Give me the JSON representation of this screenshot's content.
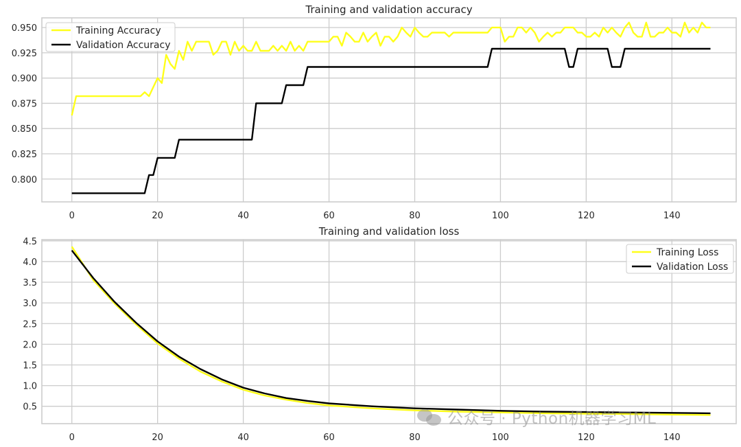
{
  "watermark": {
    "text": "公众号 · Python机器学习ML",
    "icon": "wechat-icon"
  },
  "colors": {
    "train": "#ffff1a",
    "val": "#000000",
    "grid": "#cccccc",
    "frame": "#cccccc"
  },
  "chart_data": [
    {
      "type": "line",
      "title": "Training and validation accuracy",
      "xlabel": "",
      "ylabel": "",
      "xlim": [
        -7,
        155
      ],
      "ylim": [
        0.7774,
        0.9596
      ],
      "xticks": [
        0,
        20,
        40,
        60,
        80,
        100,
        120,
        140
      ],
      "yticks": [
        0.8,
        0.825,
        0.85,
        0.875,
        0.9,
        0.925,
        0.95
      ],
      "ytick_labels": [
        "0.800",
        "0.825",
        "0.850",
        "0.875",
        "0.900",
        "0.925",
        "0.950"
      ],
      "grid": true,
      "legend": "upper-left",
      "series": [
        {
          "name": "Training Accuracy",
          "color": "#ffff1a",
          "x": [
            0,
            1,
            2,
            3,
            4,
            5,
            6,
            7,
            8,
            9,
            10,
            11,
            12,
            13,
            14,
            15,
            16,
            17,
            18,
            19,
            20,
            21,
            22,
            23,
            24,
            25,
            26,
            27,
            28,
            29,
            30,
            31,
            32,
            33,
            34,
            35,
            36,
            37,
            38,
            39,
            40,
            41,
            42,
            43,
            44,
            45,
            46,
            47,
            48,
            49,
            50,
            51,
            52,
            53,
            54,
            55,
            56,
            57,
            58,
            59,
            60,
            61,
            62,
            63,
            64,
            65,
            66,
            67,
            68,
            69,
            70,
            71,
            72,
            73,
            74,
            75,
            76,
            77,
            78,
            79,
            80,
            81,
            82,
            83,
            84,
            85,
            86,
            87,
            88,
            89,
            90,
            91,
            92,
            93,
            94,
            95,
            96,
            97,
            98,
            99,
            100,
            101,
            102,
            103,
            104,
            105,
            106,
            107,
            108,
            109,
            110,
            111,
            112,
            113,
            114,
            115,
            116,
            117,
            118,
            119,
            120,
            121,
            122,
            123,
            124,
            125,
            126,
            127,
            128,
            129,
            130,
            131,
            132,
            133,
            134,
            135,
            136,
            137,
            138,
            139,
            140,
            141,
            142,
            143,
            144,
            145,
            146,
            147,
            148,
            149
          ],
          "y": [
            0.863,
            0.882,
            0.882,
            0.882,
            0.882,
            0.882,
            0.882,
            0.882,
            0.882,
            0.882,
            0.882,
            0.882,
            0.882,
            0.882,
            0.882,
            0.882,
            0.882,
            0.886,
            0.882,
            0.891,
            0.9,
            0.895,
            0.923,
            0.914,
            0.909,
            0.927,
            0.918,
            0.936,
            0.927,
            0.936,
            0.936,
            0.936,
            0.936,
            0.923,
            0.927,
            0.936,
            0.936,
            0.923,
            0.936,
            0.927,
            0.932,
            0.927,
            0.927,
            0.936,
            0.927,
            0.927,
            0.927,
            0.932,
            0.927,
            0.932,
            0.927,
            0.936,
            0.927,
            0.932,
            0.927,
            0.936,
            0.936,
            0.936,
            0.936,
            0.936,
            0.936,
            0.941,
            0.941,
            0.932,
            0.945,
            0.941,
            0.936,
            0.936,
            0.945,
            0.936,
            0.941,
            0.945,
            0.932,
            0.941,
            0.941,
            0.936,
            0.941,
            0.95,
            0.945,
            0.941,
            0.95,
            0.945,
            0.941,
            0.941,
            0.945,
            0.945,
            0.945,
            0.945,
            0.941,
            0.945,
            0.945,
            0.945,
            0.945,
            0.945,
            0.945,
            0.945,
            0.945,
            0.945,
            0.95,
            0.95,
            0.95,
            0.936,
            0.941,
            0.941,
            0.95,
            0.95,
            0.945,
            0.95,
            0.945,
            0.936,
            0.941,
            0.945,
            0.941,
            0.945,
            0.945,
            0.95,
            0.95,
            0.95,
            0.945,
            0.945,
            0.941,
            0.941,
            0.945,
            0.941,
            0.95,
            0.945,
            0.95,
            0.945,
            0.941,
            0.95,
            0.955,
            0.945,
            0.941,
            0.941,
            0.955,
            0.941,
            0.941,
            0.945,
            0.945,
            0.95,
            0.945,
            0.945,
            0.941,
            0.955,
            0.945,
            0.95,
            0.945,
            0.955,
            0.95,
            0.95
          ]
        },
        {
          "name": "Validation Accuracy",
          "color": "#000000",
          "x": [
            0,
            1,
            2,
            3,
            4,
            5,
            6,
            7,
            8,
            9,
            10,
            11,
            12,
            13,
            14,
            15,
            16,
            17,
            18,
            19,
            20,
            21,
            22,
            23,
            24,
            25,
            26,
            27,
            28,
            29,
            30,
            31,
            32,
            33,
            34,
            35,
            36,
            37,
            38,
            39,
            40,
            41,
            42,
            43,
            44,
            45,
            46,
            47,
            48,
            49,
            50,
            51,
            52,
            53,
            54,
            55,
            56,
            57,
            58,
            59,
            60,
            61,
            62,
            63,
            64,
            65,
            66,
            67,
            68,
            69,
            70,
            71,
            72,
            73,
            74,
            75,
            76,
            77,
            78,
            79,
            80,
            81,
            82,
            83,
            84,
            85,
            86,
            87,
            88,
            89,
            90,
            91,
            92,
            93,
            94,
            95,
            96,
            97,
            98,
            99,
            100,
            101,
            102,
            103,
            104,
            105,
            106,
            107,
            108,
            109,
            110,
            111,
            112,
            113,
            114,
            115,
            116,
            117,
            118,
            119,
            120,
            121,
            122,
            123,
            124,
            125,
            126,
            127,
            128,
            129,
            130,
            131,
            132,
            133,
            134,
            135,
            136,
            137,
            138,
            139,
            140,
            141,
            142,
            143,
            144,
            145,
            146,
            147,
            148,
            149
          ],
          "y": [
            0.786,
            0.786,
            0.786,
            0.786,
            0.786,
            0.786,
            0.786,
            0.786,
            0.786,
            0.786,
            0.786,
            0.786,
            0.786,
            0.786,
            0.786,
            0.786,
            0.786,
            0.786,
            0.804,
            0.804,
            0.821,
            0.821,
            0.821,
            0.821,
            0.821,
            0.839,
            0.839,
            0.839,
            0.839,
            0.839,
            0.839,
            0.839,
            0.839,
            0.839,
            0.839,
            0.839,
            0.839,
            0.839,
            0.839,
            0.839,
            0.839,
            0.839,
            0.839,
            0.875,
            0.875,
            0.875,
            0.875,
            0.875,
            0.875,
            0.875,
            0.893,
            0.893,
            0.893,
            0.893,
            0.893,
            0.911,
            0.911,
            0.911,
            0.911,
            0.911,
            0.911,
            0.911,
            0.911,
            0.911,
            0.911,
            0.911,
            0.911,
            0.911,
            0.911,
            0.911,
            0.911,
            0.911,
            0.911,
            0.911,
            0.911,
            0.911,
            0.911,
            0.911,
            0.911,
            0.911,
            0.911,
            0.911,
            0.911,
            0.911,
            0.911,
            0.911,
            0.911,
            0.911,
            0.911,
            0.911,
            0.911,
            0.911,
            0.911,
            0.911,
            0.911,
            0.911,
            0.911,
            0.911,
            0.929,
            0.929,
            0.929,
            0.929,
            0.929,
            0.929,
            0.929,
            0.929,
            0.929,
            0.929,
            0.929,
            0.929,
            0.929,
            0.929,
            0.929,
            0.929,
            0.929,
            0.929,
            0.911,
            0.911,
            0.929,
            0.929,
            0.929,
            0.929,
            0.929,
            0.929,
            0.929,
            0.929,
            0.911,
            0.911,
            0.911,
            0.929,
            0.929,
            0.929,
            0.929,
            0.929,
            0.929,
            0.929,
            0.929,
            0.929,
            0.929,
            0.929,
            0.929,
            0.929,
            0.929,
            0.929,
            0.929,
            0.929,
            0.929,
            0.929,
            0.929,
            0.929
          ]
        }
      ]
    },
    {
      "type": "line",
      "title": "Training and validation loss",
      "xlabel": "",
      "ylabel": "",
      "xlim": [
        -7,
        155
      ],
      "ylim": [
        0.08,
        4.53
      ],
      "xticks": [
        0,
        20,
        40,
        60,
        80,
        100,
        120,
        140
      ],
      "yticks": [
        0.5,
        1.0,
        1.5,
        2.0,
        2.5,
        3.0,
        3.5,
        4.0,
        4.5
      ],
      "ytick_labels": [
        "0.5",
        "1.0",
        "1.5",
        "2.0",
        "2.5",
        "3.0",
        "3.5",
        "4.0",
        "4.5"
      ],
      "grid": true,
      "legend": "upper-right",
      "series": [
        {
          "name": "Training Loss",
          "color": "#ffff1a",
          "x": [
            0,
            5,
            10,
            15,
            20,
            25,
            30,
            35,
            40,
            45,
            50,
            55,
            60,
            70,
            80,
            90,
            100,
            110,
            120,
            130,
            140,
            149
          ],
          "y": [
            4.36,
            3.55,
            2.98,
            2.48,
            2.02,
            1.65,
            1.34,
            1.1,
            0.9,
            0.76,
            0.66,
            0.58,
            0.52,
            0.45,
            0.4,
            0.37,
            0.35,
            0.33,
            0.32,
            0.31,
            0.3,
            0.29
          ]
        },
        {
          "name": "Validation Loss",
          "color": "#000000",
          "x": [
            0,
            5,
            10,
            15,
            20,
            25,
            30,
            35,
            40,
            45,
            50,
            55,
            60,
            70,
            80,
            90,
            100,
            110,
            120,
            130,
            140,
            149
          ],
          "y": [
            4.27,
            3.6,
            3.02,
            2.52,
            2.07,
            1.7,
            1.4,
            1.15,
            0.95,
            0.81,
            0.7,
            0.63,
            0.57,
            0.5,
            0.45,
            0.42,
            0.39,
            0.37,
            0.36,
            0.35,
            0.34,
            0.33
          ]
        }
      ]
    }
  ]
}
